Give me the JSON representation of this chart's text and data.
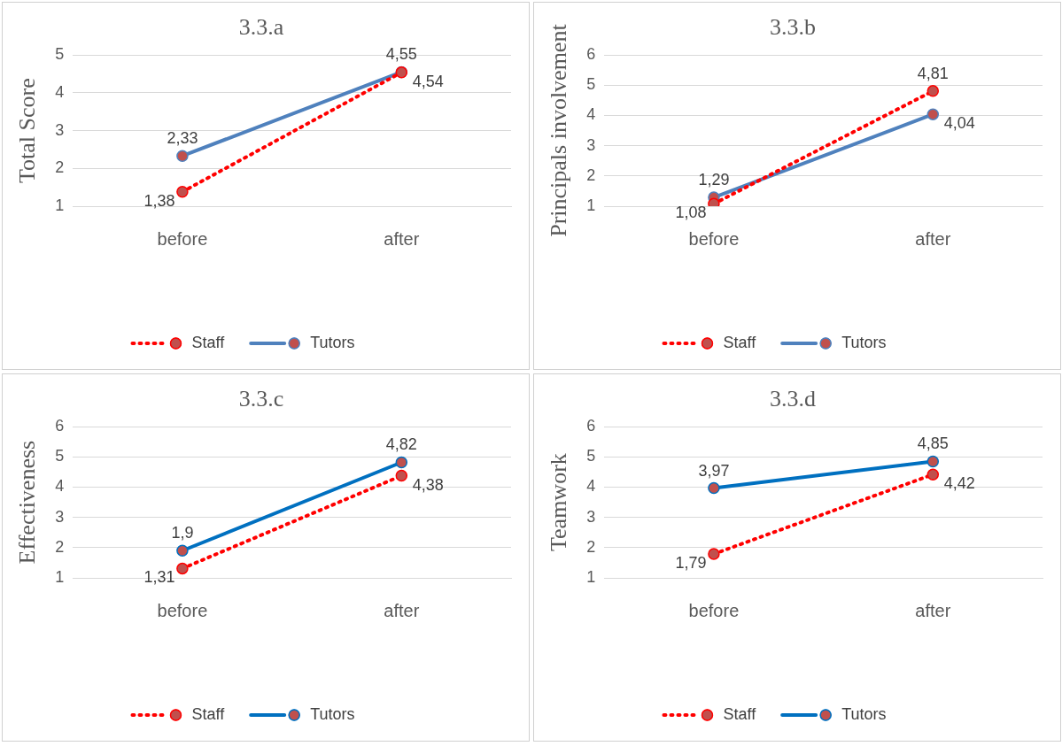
{
  "chart_data": [
    {
      "type": "line",
      "title": "3.3.a",
      "ylabel": "Total Score",
      "categories": [
        "before",
        "after"
      ],
      "ylim": [
        1,
        5
      ],
      "yticks": [
        1,
        2,
        3,
        4,
        5
      ],
      "grid": "y",
      "legend": "bottom",
      "marker": "circle",
      "series": [
        {
          "name": "Staff",
          "color": "#ff0000",
          "line_style": "dotted",
          "values": [
            1.38,
            4.54
          ],
          "value_labels": [
            "1,38",
            "4,54"
          ]
        },
        {
          "name": "Tutors",
          "color": "#4f81bd",
          "line_style": "solid",
          "values": [
            2.33,
            4.55
          ],
          "value_labels": [
            "2,33",
            "4,55"
          ]
        }
      ]
    },
    {
      "type": "line",
      "title": "3.3.b",
      "ylabel": "Principals involvement",
      "categories": [
        "before",
        "after"
      ],
      "ylim": [
        1,
        6
      ],
      "yticks": [
        1,
        2,
        3,
        4,
        5,
        6
      ],
      "grid": "y",
      "legend": "bottom",
      "marker": "circle",
      "series": [
        {
          "name": "Staff",
          "color": "#ff0000",
          "line_style": "dotted",
          "values": [
            1.08,
            4.81
          ],
          "value_labels": [
            "1,08",
            "4,81"
          ]
        },
        {
          "name": "Tutors",
          "color": "#4f81bd",
          "line_style": "solid",
          "values": [
            1.29,
            4.04
          ],
          "value_labels": [
            "1,29",
            "4,04"
          ]
        }
      ]
    },
    {
      "type": "line",
      "title": "3.3.c",
      "ylabel": "Effectiveness",
      "categories": [
        "before",
        "after"
      ],
      "ylim": [
        1,
        6
      ],
      "yticks": [
        1,
        2,
        3,
        4,
        5,
        6
      ],
      "grid": "y",
      "legend": "bottom",
      "marker": "circle",
      "series": [
        {
          "name": "Staff",
          "color": "#ff0000",
          "line_style": "dotted",
          "values": [
            1.31,
            4.38
          ],
          "value_labels": [
            "1,31",
            "4,38"
          ]
        },
        {
          "name": "Tutors",
          "color": "#0070c0",
          "line_style": "solid",
          "values": [
            1.9,
            4.82
          ],
          "value_labels": [
            "1,9",
            "4,82"
          ]
        }
      ]
    },
    {
      "type": "line",
      "title": "3.3.d",
      "ylabel": "Teamwork",
      "categories": [
        "before",
        "after"
      ],
      "ylim": [
        1,
        6
      ],
      "yticks": [
        1,
        2,
        3,
        4,
        5,
        6
      ],
      "grid": "y",
      "legend": "bottom",
      "marker": "circle",
      "series": [
        {
          "name": "Staff",
          "color": "#ff0000",
          "line_style": "dotted",
          "values": [
            1.79,
            4.42
          ],
          "value_labels": [
            "1,79",
            "4,42"
          ]
        },
        {
          "name": "Tutors",
          "color": "#0070c0",
          "line_style": "solid",
          "values": [
            3.97,
            4.85
          ],
          "value_labels": [
            "3,97",
            "4,85"
          ]
        }
      ]
    }
  ]
}
